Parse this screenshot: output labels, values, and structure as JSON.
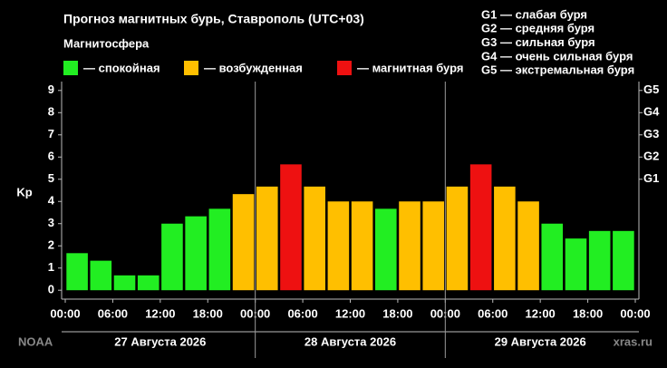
{
  "chart_data": {
    "type": "bar",
    "title": "Прогноз магнитных бурь, Ставрополь (UTC+03)",
    "legend_title": "Магнитосфера",
    "legend": [
      {
        "name": "— спокойная",
        "color": "#22ee22"
      },
      {
        "name": "— возбужденная",
        "color": "#ffbf00"
      },
      {
        "name": "— магнитная буря",
        "color": "#ee1111"
      }
    ],
    "g_scale": [
      "G1 — слабая буря",
      "G2 — средняя буря",
      "G3 — сильная буря",
      "G4 — очень сильная буря",
      "G5 — экстремальная буря"
    ],
    "y_label": "Kp",
    "x": [
      1.5,
      4.5,
      7.5,
      10.5,
      13.5,
      16.5,
      19.5,
      22.5,
      25.5,
      28.5,
      31.5,
      34.5,
      37.5,
      40.5,
      43.5,
      46.5,
      49.5,
      52.5,
      55.5,
      58.5,
      61.5,
      64.5,
      67.5,
      70.5
    ],
    "values": [
      1.67,
      1.33,
      0.67,
      0.67,
      3,
      3.33,
      3.67,
      4.33,
      4.67,
      5.67,
      4.67,
      4,
      4,
      3.67,
      4,
      4,
      4.67,
      5.67,
      4.67,
      4,
      3,
      2.33,
      2.67,
      2.67
    ],
    "colors": [
      "#22ee22",
      "#22ee22",
      "#22ee22",
      "#22ee22",
      "#22ee22",
      "#22ee22",
      "#22ee22",
      "#ffbf00",
      "#ffbf00",
      "#ee1111",
      "#ffbf00",
      "#ffbf00",
      "#ffbf00",
      "#22ee22",
      "#ffbf00",
      "#ffbf00",
      "#ffbf00",
      "#ee1111",
      "#ffbf00",
      "#ffbf00",
      "#22ee22",
      "#22ee22",
      "#22ee22",
      "#22ee22"
    ],
    "bar_width": 2.7,
    "xlim": [
      0,
      72
    ],
    "xticks": [
      {
        "value": 0,
        "label": "00:00"
      },
      {
        "value": 6,
        "label": "06:00"
      },
      {
        "value": 12,
        "label": "12:00"
      },
      {
        "value": 18,
        "label": "18:00"
      },
      {
        "value": 24,
        "label": "00:00"
      },
      {
        "value": 30,
        "label": "06:00"
      },
      {
        "value": 36,
        "label": "12:00"
      },
      {
        "value": 42,
        "label": "18:00"
      },
      {
        "value": 48,
        "label": "00:00"
      },
      {
        "value": 54,
        "label": "06:00"
      },
      {
        "value": 60,
        "label": "12:00"
      },
      {
        "value": 66,
        "label": "18:00"
      },
      {
        "value": 72,
        "label": "00:00"
      }
    ],
    "days": [
      {
        "start": 0,
        "end": 24,
        "label": "27 Августа 2026"
      },
      {
        "start": 24,
        "end": 48,
        "label": "28 Августа 2026"
      },
      {
        "start": 48,
        "end": 72,
        "label": "29 Августа 2026"
      }
    ],
    "ylim": [
      -0.4,
      9.4
    ],
    "yticks": [
      0,
      1,
      2,
      3,
      4,
      5,
      6,
      7,
      8,
      9
    ],
    "y2ticks": [
      {
        "value": 5,
        "label": "G1"
      },
      {
        "value": 6,
        "label": "G2"
      },
      {
        "value": 7,
        "label": "G3"
      },
      {
        "value": 8,
        "label": "G4"
      },
      {
        "value": 9,
        "label": "G5"
      }
    ],
    "source": "NOAA",
    "site": "xras.ru"
  }
}
